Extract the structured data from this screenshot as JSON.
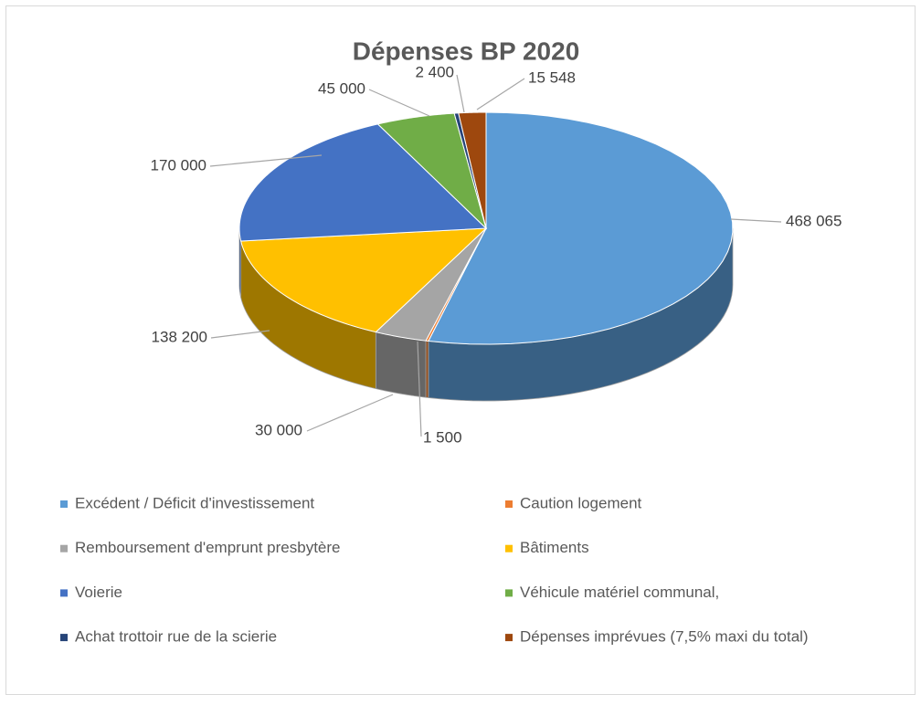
{
  "chart_data": {
    "type": "pie",
    "title": "Dépenses BP 2020",
    "categories": [
      "Excédent / Déficit d'investissement",
      "Caution logement",
      "Remboursement d'emprunt presbytère",
      "Bâtiments",
      "Voierie",
      "Véhicule matériel communal,",
      "Achat trottoir rue de la scierie",
      "Dépenses imprévues  (7,5% maxi du total)"
    ],
    "values": [
      468065,
      1500,
      30000,
      138200,
      170000,
      45000,
      2400,
      15548
    ],
    "value_labels": [
      "468 065",
      "1 500",
      "30 000",
      "138 200",
      "170 000",
      "45 000",
      "2 400",
      "15 548"
    ],
    "colors": [
      "#5b9bd5",
      "#ed7d31",
      "#a5a5a5",
      "#ffc000",
      "#4472c4",
      "#70ad47",
      "#264478",
      "#9e480e"
    ],
    "legend": "bottom"
  }
}
